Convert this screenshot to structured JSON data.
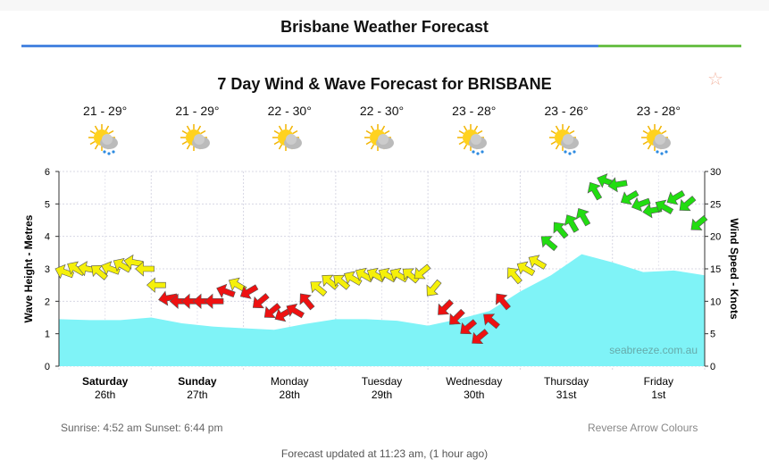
{
  "page_title": "Brisbane Weather Forecast",
  "favorite_icon": "star-outline-icon",
  "days": [
    {
      "temp": "21 - 29°",
      "icon": "sun-cloud-rain-icon",
      "rain": true
    },
    {
      "temp": "21 - 29°",
      "icon": "sun-cloud-icon",
      "rain": false
    },
    {
      "temp": "22 - 30°",
      "icon": "sun-cloud-icon",
      "rain": false
    },
    {
      "temp": "22 - 30°",
      "icon": "sun-cloud-icon",
      "rain": false
    },
    {
      "temp": "23 - 28°",
      "icon": "sun-cloud-rain-icon",
      "rain": true
    },
    {
      "temp": "23 - 26°",
      "icon": "sun-cloud-rain-icon",
      "rain": true
    },
    {
      "temp": "23 - 28°",
      "icon": "sun-cloud-rain-icon",
      "rain": true
    }
  ],
  "chart_data": {
    "type": "area",
    "title": "7 Day Wind & Wave Forecast for BRISBANE",
    "ylabel": "Wave Height - Metres",
    "y2label": "Wind Speed - Knots",
    "ylim": [
      0,
      6
    ],
    "y2lim": [
      0,
      30
    ],
    "yticks": [
      "0",
      "1",
      "2",
      "3",
      "4",
      "5",
      "6"
    ],
    "y2ticks": [
      "0",
      "5",
      "10",
      "15",
      "20",
      "25",
      "30"
    ],
    "categories": [
      {
        "day": "Saturday",
        "date": "26th",
        "bold": true
      },
      {
        "day": "Sunday",
        "date": "27th",
        "bold": true
      },
      {
        "day": "Monday",
        "date": "28th",
        "bold": false
      },
      {
        "day": "Tuesday",
        "date": "29th",
        "bold": false
      },
      {
        "day": "Wednesday",
        "date": "30th",
        "bold": false
      },
      {
        "day": "Thursday",
        "date": "31st",
        "bold": false
      },
      {
        "day": "Friday",
        "date": "1st",
        "bold": false
      }
    ],
    "grid": true,
    "watermark": "seabreeze.com.au",
    "wave_series": {
      "name": "Wave Height",
      "color": "#7ff3f7",
      "step_days": 0.5,
      "values": [
        1.45,
        1.42,
        1.42,
        1.5,
        1.32,
        1.22,
        1.17,
        1.12,
        1.3,
        1.45,
        1.45,
        1.4,
        1.25,
        1.45,
        1.7,
        2.3,
        2.8,
        3.45,
        3.2,
        2.9,
        2.95,
        2.8
      ]
    },
    "wind_series": {
      "name": "Wind Speed",
      "step_days": 0.125,
      "thresholds": {
        "red_below": 12,
        "green_from": 19
      },
      "colors": {
        "low": "#ee1111",
        "mid": "#f5f00a",
        "high": "#22dd11"
      },
      "speeds": [
        14.5,
        15,
        15,
        14.5,
        15,
        15.5,
        16,
        15,
        12.5,
        10.5,
        10,
        10,
        10,
        10,
        11.5,
        12.5,
        11.5,
        10,
        8.5,
        8,
        8.5,
        10,
        12,
        13,
        13,
        13.5,
        14,
        14,
        14,
        14,
        14,
        14.5,
        12,
        9,
        7.5,
        6,
        4.5,
        7,
        10,
        14,
        15,
        16,
        19,
        21,
        22,
        23,
        27,
        28.5,
        28,
        26,
        25,
        24,
        24.5,
        26,
        25,
        22
      ],
      "directions": [
        200,
        210,
        190,
        220,
        200,
        210,
        190,
        180,
        180,
        170,
        180,
        180,
        180,
        180,
        200,
        210,
        150,
        140,
        140,
        150,
        210,
        230,
        220,
        220,
        220,
        210,
        210,
        210,
        210,
        210,
        220,
        140,
        130,
        135,
        135,
        140,
        140,
        220,
        230,
        230,
        210,
        210,
        220,
        230,
        240,
        240,
        240,
        200,
        170,
        150,
        160,
        170,
        210,
        150,
        140,
        140
      ]
    }
  },
  "footer": {
    "sun": "Sunrise: 4:52 am  Sunset: 6:44 pm",
    "reverse": "Reverse Arrow Colours",
    "updated": "Forecast updated at 11:23 am, (1 hour ago)"
  }
}
